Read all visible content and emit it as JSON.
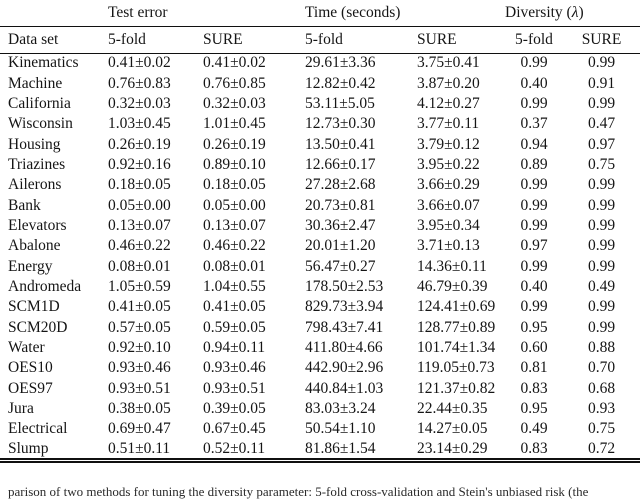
{
  "table": {
    "group_headers": [
      {
        "label": "",
        "span": 1
      },
      {
        "label": "Test error",
        "span": 2
      },
      {
        "label": "Time (seconds)",
        "span": 2
      },
      {
        "label": "Diversity (λ)",
        "span": 2
      }
    ],
    "column_headers": [
      "Data set",
      "5-fold",
      "SURE",
      "5-fold",
      "SURE",
      "5-fold",
      "SURE"
    ],
    "rows": [
      [
        "Kinematics",
        "0.41±0.02",
        "0.41±0.02",
        "29.61±3.36",
        "3.75±0.41",
        "0.99",
        "0.99"
      ],
      [
        "Machine",
        "0.76±0.83",
        "0.76±0.85",
        "12.82±0.42",
        "3.87±0.20",
        "0.40",
        "0.91"
      ],
      [
        "California",
        "0.32±0.03",
        "0.32±0.03",
        "53.11±5.05",
        "4.12±0.27",
        "0.99",
        "0.99"
      ],
      [
        "Wisconsin",
        "1.03±0.45",
        "1.01±0.45",
        "12.73±0.30",
        "3.77±0.11",
        "0.37",
        "0.47"
      ],
      [
        "Housing",
        "0.26±0.19",
        "0.26±0.19",
        "13.50±0.41",
        "3.79±0.12",
        "0.94",
        "0.97"
      ],
      [
        "Triazines",
        "0.92±0.16",
        "0.89±0.10",
        "12.66±0.17",
        "3.95±0.22",
        "0.89",
        "0.75"
      ],
      [
        "Ailerons",
        "0.18±0.05",
        "0.18±0.05",
        "27.28±2.68",
        "3.66±0.29",
        "0.99",
        "0.99"
      ],
      [
        "Bank",
        "0.05±0.00",
        "0.05±0.00",
        "20.73±0.81",
        "3.66±0.07",
        "0.99",
        "0.99"
      ],
      [
        "Elevators",
        "0.13±0.07",
        "0.13±0.07",
        "30.36±2.47",
        "3.95±0.34",
        "0.99",
        "0.99"
      ],
      [
        "Abalone",
        "0.46±0.22",
        "0.46±0.22",
        "20.01±1.20",
        "3.71±0.13",
        "0.97",
        "0.99"
      ],
      [
        "Energy",
        "0.08±0.01",
        "0.08±0.01",
        "56.47±0.27",
        "14.36±0.11",
        "0.99",
        "0.99"
      ],
      [
        "Andromeda",
        "1.05±0.59",
        "1.04±0.55",
        "178.50±2.53",
        "46.79±0.39",
        "0.40",
        "0.49"
      ],
      [
        "SCM1D",
        "0.41±0.05",
        "0.41±0.05",
        "829.73±3.94",
        "124.41±0.69",
        "0.99",
        "0.99"
      ],
      [
        "SCM20D",
        "0.57±0.05",
        "0.59±0.05",
        "798.43±7.41",
        "128.77±0.89",
        "0.95",
        "0.99"
      ],
      [
        "Water",
        "0.92±0.10",
        "0.94±0.11",
        "411.80±4.66",
        "101.74±1.34",
        "0.60",
        "0.88"
      ],
      [
        "OES10",
        "0.93±0.46",
        "0.93±0.46",
        "442.90±2.96",
        "119.05±0.73",
        "0.81",
        "0.70"
      ],
      [
        "OES97",
        "0.93±0.51",
        "0.93±0.51",
        "440.84±1.03",
        "121.37±0.82",
        "0.83",
        "0.68"
      ],
      [
        "Jura",
        "0.38±0.05",
        "0.39±0.05",
        "83.03±3.24",
        "22.44±0.35",
        "0.95",
        "0.93"
      ],
      [
        "Electrical",
        "0.69±0.47",
        "0.67±0.45",
        "50.54±1.10",
        "14.27±0.05",
        "0.49",
        "0.75"
      ],
      [
        "Slump",
        "0.51±0.11",
        "0.52±0.11",
        "81.86±1.54",
        "23.14±0.29",
        "0.83",
        "0.72"
      ]
    ]
  },
  "caption_fragment": "parison of two methods for tuning the diversity parameter: 5-fold cross-validation and Stein's unbiased risk (the"
}
